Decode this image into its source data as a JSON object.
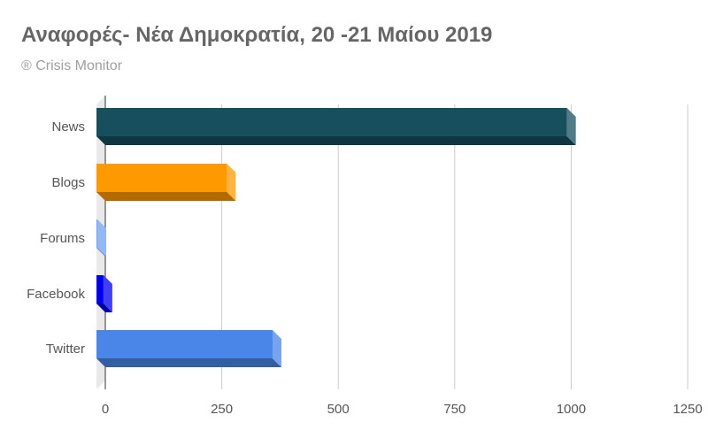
{
  "chart_data": {
    "type": "bar",
    "orientation": "horizontal",
    "style": "3d",
    "title": "Αναφορές- Νέα Δημοκρατία, 20 -21 Μαίου 2019",
    "subtitle": "® Crisis Monitor",
    "categories": [
      "News",
      "Blogs",
      "Forums",
      "Facebook",
      "Twitter"
    ],
    "values": [
      1010,
      280,
      2,
      15,
      378
    ],
    "colors": [
      "#174f5d",
      "#ff9900",
      "#6fa0f0",
      "#0000ee",
      "#4a86e8"
    ],
    "x_ticks": [
      0,
      250,
      500,
      750,
      1000,
      1250
    ],
    "xlim": [
      0,
      1250
    ],
    "grid": true,
    "legend": "none"
  }
}
